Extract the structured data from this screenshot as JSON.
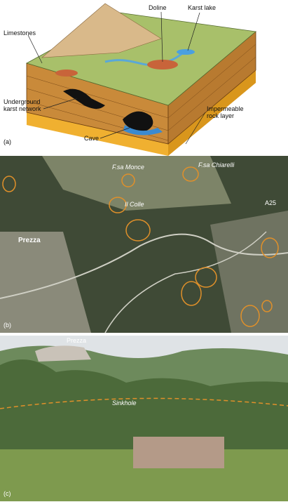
{
  "panel_a": {
    "tag": "(a)",
    "doline": "Doline",
    "karst_lake": "Karst lake",
    "limestones": "Limestones",
    "underground": [
      "Underground",
      "karst network"
    ],
    "cave": "Cave",
    "impermeable": [
      "Impermeable",
      "rock layer"
    ]
  },
  "panel_b": {
    "tag": "(b)",
    "labels": [
      "F.sa Monce",
      "F.sa Chiarelli",
      "Il Colle",
      "A25",
      "Prezza"
    ]
  },
  "panel_c": {
    "tag": "(c)",
    "town": "Prezza",
    "sinkhole": "Sinkhole"
  }
}
